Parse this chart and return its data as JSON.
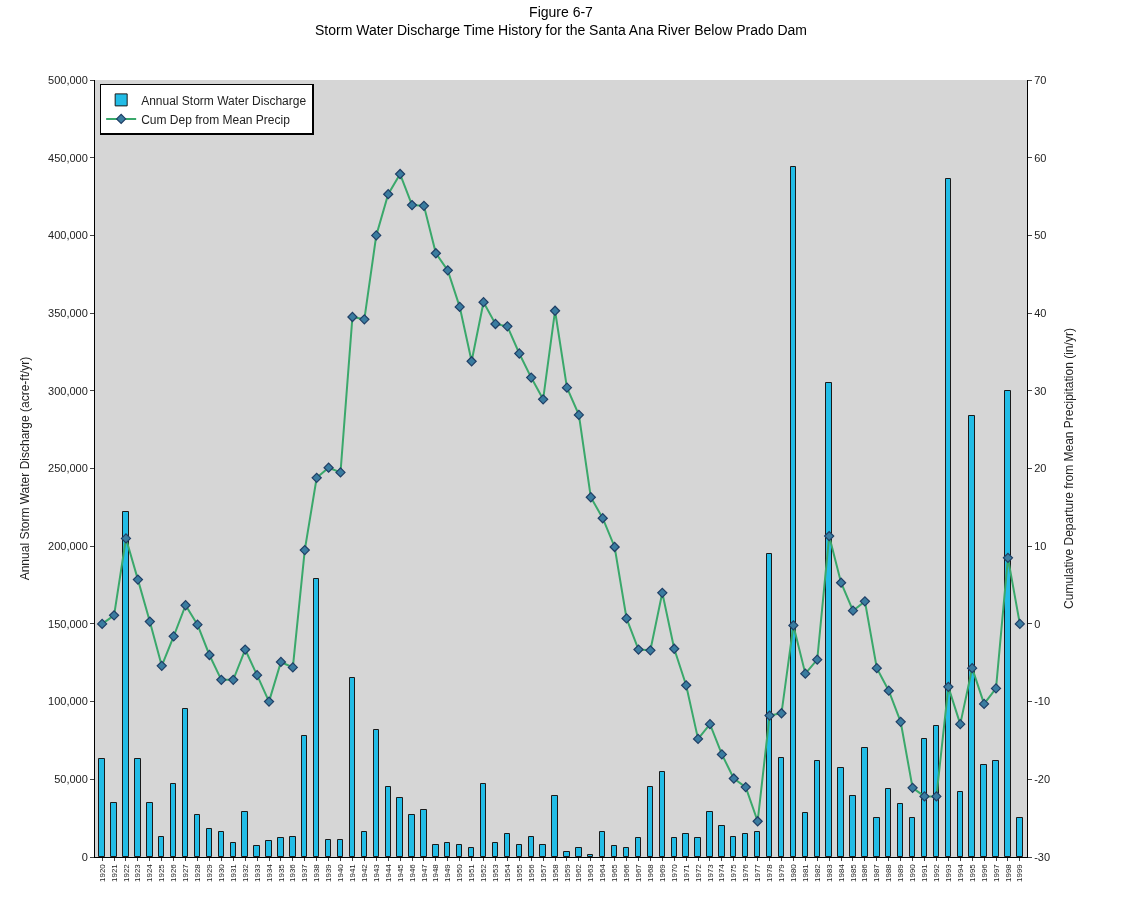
{
  "chart_data": {
    "type": "bar",
    "title": "Figure 6-7",
    "subtitle": "Storm Water Discharge Time History for the Santa Ana River Below Prado Dam",
    "ylabel": "Annual Storm Water Discharge (acre-ft/yr)",
    "y2label": "Cumulative Departure from Mean Precipitation (in/yr)",
    "categories": [
      "1920",
      "1921",
      "1922",
      "1923",
      "1924",
      "1925",
      "1926",
      "1927",
      "1928",
      "1929",
      "1930",
      "1931",
      "1932",
      "1933",
      "1934",
      "1935",
      "1936",
      "1937",
      "1938",
      "1939",
      "1940",
      "1941",
      "1942",
      "1943",
      "1944",
      "1945",
      "1946",
      "1947",
      "1948",
      "1949",
      "1950",
      "1951",
      "1952",
      "1953",
      "1954",
      "1955",
      "1956",
      "1957",
      "1958",
      "1959",
      "1962",
      "1963",
      "1964",
      "1965",
      "1966",
      "1967",
      "1968",
      "1969",
      "1970",
      "1971",
      "1972",
      "1973",
      "1974",
      "1975",
      "1976",
      "1977",
      "1978",
      "1979",
      "1980",
      "1981",
      "1982",
      "1983",
      "1984",
      "1985",
      "1986",
      "1987",
      "1988",
      "1989",
      "1990",
      "1991",
      "1992",
      "1993",
      "1994",
      "1995",
      "1996",
      "1997",
      "1998",
      "1999"
    ],
    "series": [
      {
        "name": "Annual Storm Water Discharge",
        "color": "#22bce6",
        "values": [
          63000,
          35000,
          222000,
          63000,
          35000,
          13000,
          47000,
          95000,
          27000,
          18000,
          16000,
          9000,
          29000,
          7000,
          10000,
          12000,
          13000,
          78000,
          179000,
          11000,
          11000,
          115000,
          16000,
          82000,
          45000,
          38000,
          27000,
          30000,
          8000,
          9000,
          8000,
          6000,
          47000,
          9000,
          15000,
          8000,
          13000,
          8000,
          39000,
          3000,
          5500,
          1500,
          16000,
          7000,
          6000,
          12000,
          45000,
          55000,
          12000,
          15000,
          12000,
          29000,
          20000,
          13000,
          15000,
          16000,
          195000,
          64000,
          444000,
          28000,
          62000,
          305000,
          57000,
          39000,
          70000,
          25000,
          44000,
          34000,
          25000,
          76000,
          84000,
          436000,
          42000,
          284000,
          59000,
          62000,
          300000,
          25000
        ]
      },
      {
        "name": "Cum Dep from Mean Precip",
        "type": "line",
        "axis": "y2",
        "color": "#3aa86b",
        "values": [
          0,
          1.1,
          11,
          5.7,
          0.3,
          -5.4,
          -1.6,
          2.4,
          -0.1,
          -4,
          -7.2,
          -7.2,
          -3.3,
          -6.6,
          -10,
          -4.9,
          -5.6,
          9.5,
          18.8,
          20.1,
          19.5,
          39.5,
          39.2,
          50,
          55.3,
          57.9,
          53.9,
          53.8,
          47.7,
          45.5,
          40.8,
          33.8,
          41.4,
          38.6,
          38.3,
          34.8,
          31.7,
          28.9,
          40.3,
          30.4,
          26.9,
          16.3,
          13.6,
          9.9,
          0.7,
          -3.3,
          -3.4,
          4,
          -3.2,
          -7.9,
          -14.8,
          -12.9,
          -16.8,
          -19.9,
          -21,
          -25.4,
          -11.8,
          -11.5,
          -0.2,
          -6.4,
          -4.6,
          11.3,
          5.3,
          1.7,
          2.9,
          -5.7,
          -8.6,
          -12.6,
          -21.1,
          -22.2,
          -22.2,
          -8.1,
          -12.9,
          -5.7,
          -10.3,
          -8.3,
          8.5,
          0
        ]
      }
    ],
    "ylim": [
      0,
      500000
    ],
    "yticks": [
      0,
      {
        "value": 50000,
        "label": "50,000"
      },
      {
        "value": 100000,
        "label": "100,000"
      },
      {
        "value": 150000,
        "label": "150,000"
      },
      {
        "value": 200000,
        "label": "200,000"
      },
      {
        "value": 250000,
        "label": "250,000"
      },
      {
        "value": 300000,
        "label": "300,000"
      },
      {
        "value": 350000,
        "label": "350,000"
      },
      {
        "value": 400000,
        "label": "400,000"
      },
      {
        "value": 450000,
        "label": "450,000"
      },
      {
        "value": 500000,
        "label": "500,000"
      }
    ],
    "y2lim": [
      -30,
      70
    ],
    "y2ticks": [
      -30,
      -20,
      -10,
      0,
      10,
      20,
      30,
      40,
      50,
      60,
      70
    ],
    "marker": "diamond",
    "line_style": "solid",
    "grid": false,
    "legend": "top left"
  }
}
